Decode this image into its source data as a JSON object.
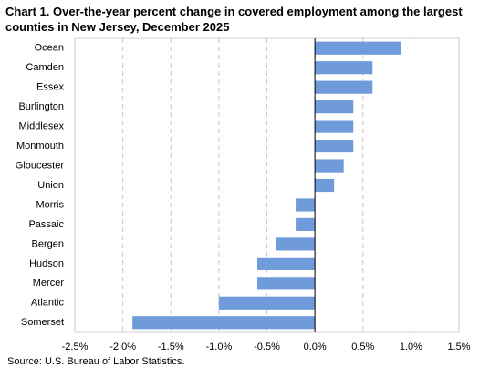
{
  "chart_data": {
    "type": "barh",
    "title": "Chart 1.  Over-the-year percent change in covered employment among the largest counties in New Jersey, December 2025",
    "categories": [
      "Ocean",
      "Camden",
      "Essex",
      "Burlington",
      "Middlesex",
      "Monmouth",
      "Gloucester",
      "Union",
      "Morris",
      "Passaic",
      "Bergen",
      "Hudson",
      "Mercer",
      "Atlantic",
      "Somerset"
    ],
    "values": [
      0.9,
      0.6,
      0.6,
      0.4,
      0.4,
      0.4,
      0.3,
      0.2,
      -0.2,
      -0.2,
      -0.4,
      -0.6,
      -0.6,
      -1.0,
      -1.9
    ],
    "color": "#6f9bdb",
    "xlim": [
      -2.5,
      1.5
    ],
    "xticks": [
      {
        "value": -2.5,
        "label": "-2.5%"
      },
      {
        "value": -2.0,
        "label": "-2.0%"
      },
      {
        "value": -1.5,
        "label": "-1.5%"
      },
      {
        "value": -1.0,
        "label": "-1.0%"
      },
      {
        "value": -0.5,
        "label": "-0.5%"
      },
      {
        "value": 0,
        "label": "0.0%"
      },
      {
        "value": 0.5,
        "label": "0.5%"
      },
      {
        "value": 1.0,
        "label": "1.0%"
      },
      {
        "value": 1.5,
        "label": "1.5%"
      }
    ],
    "grid": true,
    "source": "Source: U.S. Bureau of Labor Statistics."
  }
}
